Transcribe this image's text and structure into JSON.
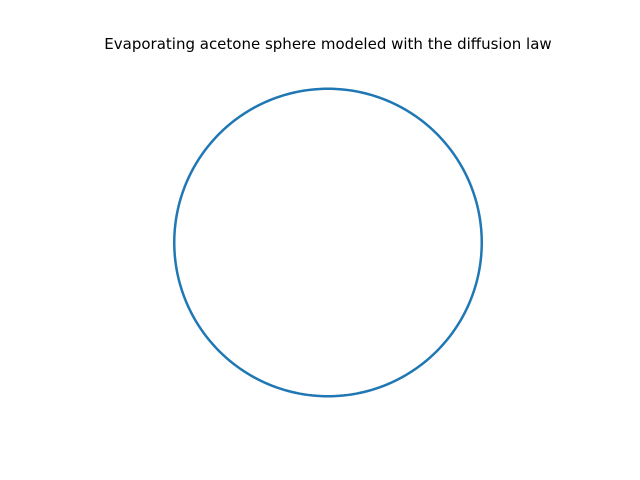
{
  "chart_data": {
    "type": "line",
    "title": "Evaporating acetone sphere modeled with the diffusion law",
    "xlabel": "",
    "ylabel": "",
    "axes_visible": false,
    "grid": false,
    "aspect": "equal",
    "xlim": [
      -1.2,
      1.2
    ],
    "ylim": [
      -1.2,
      1.2
    ],
    "series": [
      {
        "shape": "circle",
        "center": [
          0,
          0
        ],
        "radius": 1,
        "color": "#1f77b4"
      }
    ]
  }
}
